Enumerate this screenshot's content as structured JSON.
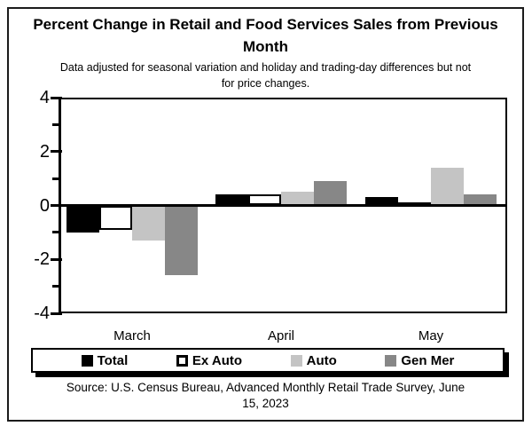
{
  "chart_data": {
    "type": "bar",
    "title": "Percent Change in Retail and Food Services Sales from Previous Month",
    "subtitle": "Data adjusted for seasonal variation and holiday and trading-day differences but not for price changes.",
    "source": "Source: U.S. Census Bureau, Advanced Monthly Retail Trade Survey, June 15, 2023",
    "categories": [
      "March",
      "April",
      "May"
    ],
    "series": [
      {
        "name": "Total",
        "color": "#000000",
        "values": [
          -1.0,
          0.4,
          0.3
        ]
      },
      {
        "name": "Ex Auto",
        "color": "#ffffff",
        "border_color": "#000000",
        "values": [
          -0.9,
          0.4,
          0.1
        ]
      },
      {
        "name": "Auto",
        "color": "#c4c4c4",
        "values": [
          -1.3,
          0.5,
          1.4
        ]
      },
      {
        "name": "Gen Mer",
        "color": "#878787",
        "values": [
          -2.6,
          0.9,
          0.4
        ]
      }
    ],
    "ylim": [
      -4,
      4
    ],
    "yticks": [
      4,
      2,
      0,
      -2,
      -4
    ],
    "yticks_minor": [
      3,
      1,
      -1,
      -3
    ],
    "baseline": 0,
    "grid": false,
    "legend_position": "bottom",
    "axis_color": "#000000",
    "background_color": "#ffffff"
  }
}
